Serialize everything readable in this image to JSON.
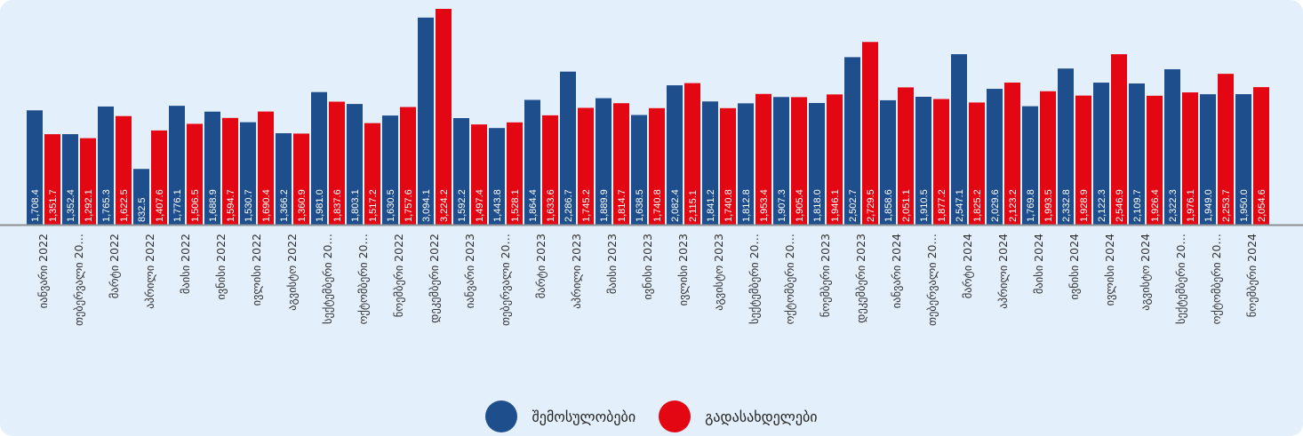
{
  "colors": {
    "background": "#e3f0fc",
    "axis": "#8c8f94",
    "series_1": "#1f4e8c",
    "series_2": "#e30613",
    "value_text": "#ffffff",
    "tick_text": "#333333"
  },
  "chart_data": {
    "type": "bar",
    "grid": false,
    "legend_position": "bottom",
    "categories": [
      "იანვარი 2022",
      "თებერვალი 20…",
      "მარტი 2022",
      "აპრილი 2022",
      "მაისი 2022",
      "ივნისი 2022",
      "ივლისი 2022",
      "აგვისტო 2022",
      "სექტემბერი 20…",
      "ოქტომბერი 20…",
      "ნოემბერი 2022",
      "დეკემბერი 2022",
      "იანვარი 2023",
      "თებერვალი 20…",
      "მარტი 2023",
      "აპრილი 2023",
      "მაისი 2023",
      "ივნისი 2023",
      "ივლისი 2023",
      "აგვისტო 2023",
      "სექტემბერი 20…",
      "ოქტომბერი 20…",
      "ნოემბერი 2023",
      "დეკემბერი 2023",
      "იანვარი 2024",
      "თებერვალი 20…",
      "მარტი 2024",
      "აპრილი 2024",
      "მაისი 2024",
      "ივნისი 2024",
      "ივლისი 2024",
      "აგვისტო 2024",
      "სექტემბერი 20…",
      "ოქტომბერი 20…",
      "ნოემბერი 2024"
    ],
    "series": [
      {
        "name": "შემოსულობები",
        "values": [
          1708.4,
          1352.4,
          1765.3,
          832.5,
          1776.1,
          1688.9,
          1530.7,
          1366.2,
          1981.0,
          1803.1,
          1630.5,
          3094.1,
          1592.2,
          1443.8,
          1864.4,
          2286.7,
          1889.9,
          1638.5,
          2082.4,
          1841.2,
          1812.8,
          1907.3,
          1818.0,
          2502.7,
          1858.6,
          1910.5,
          2547.1,
          2029.6,
          1769.8,
          2332.8,
          2122.3,
          2109.7,
          2322.3,
          1949.0,
          1950.0
        ],
        "labels": [
          "1,708.4",
          "1,352.4",
          "1,765.3",
          "832.5",
          "1,776.1",
          "1,688.9",
          "1,530.7",
          "1,366.2",
          "1,981.0",
          "1,803.1",
          "1,630.5",
          "3,094.1",
          "1,592.2",
          "1,443.8",
          "1,864.4",
          "2,286.7",
          "1,889.9",
          "1,638.5",
          "2,082.4",
          "1,841.2",
          "1,812.8",
          "1,907.3",
          "1,818.0",
          "2,502.7",
          "1,858.6",
          "1,910.5",
          "2,547.1",
          "2,029.6",
          "1,769.8",
          "2,332.8",
          "2,122.3",
          "2,109.7",
          "2,322.3",
          "1,949.0",
          "1,950.0"
        ]
      },
      {
        "name": "გადასახდელები",
        "values": [
          1351.7,
          1292.1,
          1622.5,
          1407.6,
          1506.5,
          1594.7,
          1690.4,
          1360.9,
          1837.6,
          1517.2,
          1757.6,
          3224.2,
          1497.4,
          1528.1,
          1633.6,
          1745.2,
          1814.7,
          1740.8,
          2115.1,
          1740.8,
          1953.4,
          1905.4,
          1946.1,
          2729.5,
          2051.1,
          1877.2,
          1825.2,
          2123.2,
          1993.5,
          1928.9,
          2546.9,
          1926.4,
          1976.1,
          2253.7,
          2054.6
        ],
        "labels": [
          "1,351.7",
          "1,292.1",
          "1,622.5",
          "1,407.6",
          "1,506.5",
          "1,594.7",
          "1,690.4",
          "1,360.9",
          "1,837.6",
          "1,517.2",
          "1,757.6",
          "3,224.2",
          "1,497.4",
          "1,528.1",
          "1,633.6",
          "1,745.2",
          "1,814.7",
          "1,740.8",
          "2,115.1",
          "1,740.8",
          "1,953.4",
          "1,905.4",
          "1,946.1",
          "2,729.5",
          "2,051.1",
          "1,877.2",
          "1,825.2",
          "2,123.2",
          "1,993.5",
          "1,928.9",
          "2,546.9",
          "1,926.4",
          "1,976.1",
          "2,253.7",
          "2,054.6"
        ]
      }
    ],
    "ylim": [
      0,
      3224.2
    ]
  },
  "legend": {
    "items": [
      {
        "label": "შემოსულობები",
        "color": "#1f4e8c"
      },
      {
        "label": "გადასახდელები",
        "color": "#e30613"
      }
    ]
  }
}
